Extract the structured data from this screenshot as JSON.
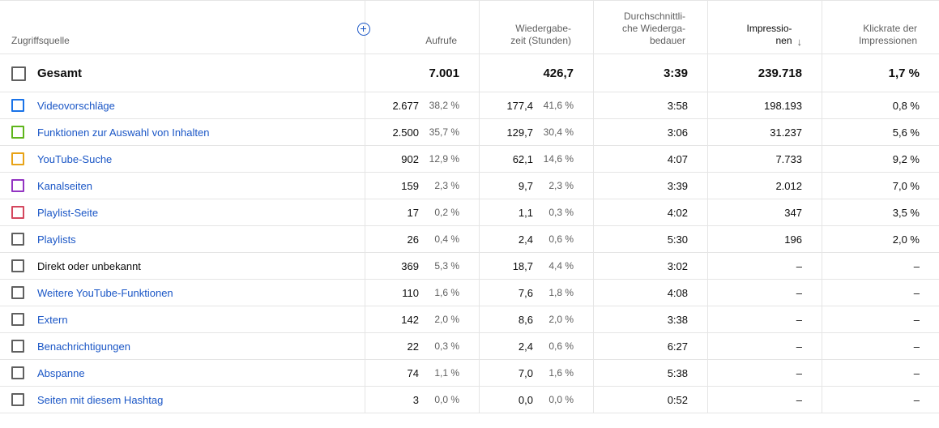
{
  "columns": {
    "source": "Zugriffsquelle",
    "views": "Aufrufe",
    "watch_time": "Wiedergabe-\nzeit (Stunden)",
    "avg_duration": "Durchschnittli-\nche Wiederga-\nbedauer",
    "impressions": "Impressio-\nnen",
    "ctr": "Klickrate der\nImpressionen"
  },
  "total": {
    "label": "Gesamt",
    "views": "7.001",
    "watch_time": "426,7",
    "avg_duration": "3:39",
    "impressions": "239.718",
    "ctr": "1,7 %"
  },
  "rows": [
    {
      "label": "Videovorschläge",
      "color": "#1a73e8",
      "link": true,
      "views": "2.677",
      "views_pct": "38,2 %",
      "watch": "177,4",
      "watch_pct": "41,6 %",
      "avg": "3:58",
      "impr": "198.193",
      "ctr": "0,8 %"
    },
    {
      "label": "Funktionen zur Auswahl von Inhalten",
      "color": "#5fb51c",
      "link": true,
      "views": "2.500",
      "views_pct": "35,7 %",
      "watch": "129,7",
      "watch_pct": "30,4 %",
      "avg": "3:06",
      "impr": "31.237",
      "ctr": "5,6 %"
    },
    {
      "label": "YouTube-Suche",
      "color": "#e8a317",
      "link": true,
      "views": "902",
      "views_pct": "12,9 %",
      "watch": "62,1",
      "watch_pct": "14,6 %",
      "avg": "4:07",
      "impr": "7.733",
      "ctr": "9,2 %"
    },
    {
      "label": "Kanalseiten",
      "color": "#9334c2",
      "link": true,
      "views": "159",
      "views_pct": "2,3 %",
      "watch": "9,7",
      "watch_pct": "2,3 %",
      "avg": "3:39",
      "impr": "2.012",
      "ctr": "7,0 %"
    },
    {
      "label": "Playlist-Seite",
      "color": "#d4475e",
      "link": true,
      "views": "17",
      "views_pct": "0,2 %",
      "watch": "1,1",
      "watch_pct": "0,3 %",
      "avg": "4:02",
      "impr": "347",
      "ctr": "3,5 %"
    },
    {
      "label": "Playlists",
      "color": "#606060",
      "link": true,
      "views": "26",
      "views_pct": "0,4 %",
      "watch": "2,4",
      "watch_pct": "0,6 %",
      "avg": "5:30",
      "impr": "196",
      "ctr": "2,0 %"
    },
    {
      "label": "Direkt oder unbekannt",
      "color": "#606060",
      "link": false,
      "views": "369",
      "views_pct": "5,3 %",
      "watch": "18,7",
      "watch_pct": "4,4 %",
      "avg": "3:02",
      "impr": "–",
      "ctr": "–"
    },
    {
      "label": "Weitere YouTube-Funktionen",
      "color": "#606060",
      "link": true,
      "views": "110",
      "views_pct": "1,6 %",
      "watch": "7,6",
      "watch_pct": "1,8 %",
      "avg": "4:08",
      "impr": "–",
      "ctr": "–"
    },
    {
      "label": "Extern",
      "color": "#606060",
      "link": true,
      "views": "142",
      "views_pct": "2,0 %",
      "watch": "8,6",
      "watch_pct": "2,0 %",
      "avg": "3:38",
      "impr": "–",
      "ctr": "–"
    },
    {
      "label": "Benachrichtigungen",
      "color": "#606060",
      "link": true,
      "views": "22",
      "views_pct": "0,3 %",
      "watch": "2,4",
      "watch_pct": "0,6 %",
      "avg": "6:27",
      "impr": "–",
      "ctr": "–"
    },
    {
      "label": "Abspanne",
      "color": "#606060",
      "link": true,
      "views": "74",
      "views_pct": "1,1 %",
      "watch": "7,0",
      "watch_pct": "1,6 %",
      "avg": "5:38",
      "impr": "–",
      "ctr": "–"
    },
    {
      "label": "Seiten mit diesem Hashtag",
      "color": "#606060",
      "link": true,
      "views": "3",
      "views_pct": "0,0 %",
      "watch": "0,0",
      "watch_pct": "0,0 %",
      "avg": "0:52",
      "impr": "–",
      "ctr": "–"
    }
  ],
  "icons": {
    "add": "add-circle-icon",
    "sort": "arrow-down-icon"
  },
  "sort_arrow": "↓"
}
